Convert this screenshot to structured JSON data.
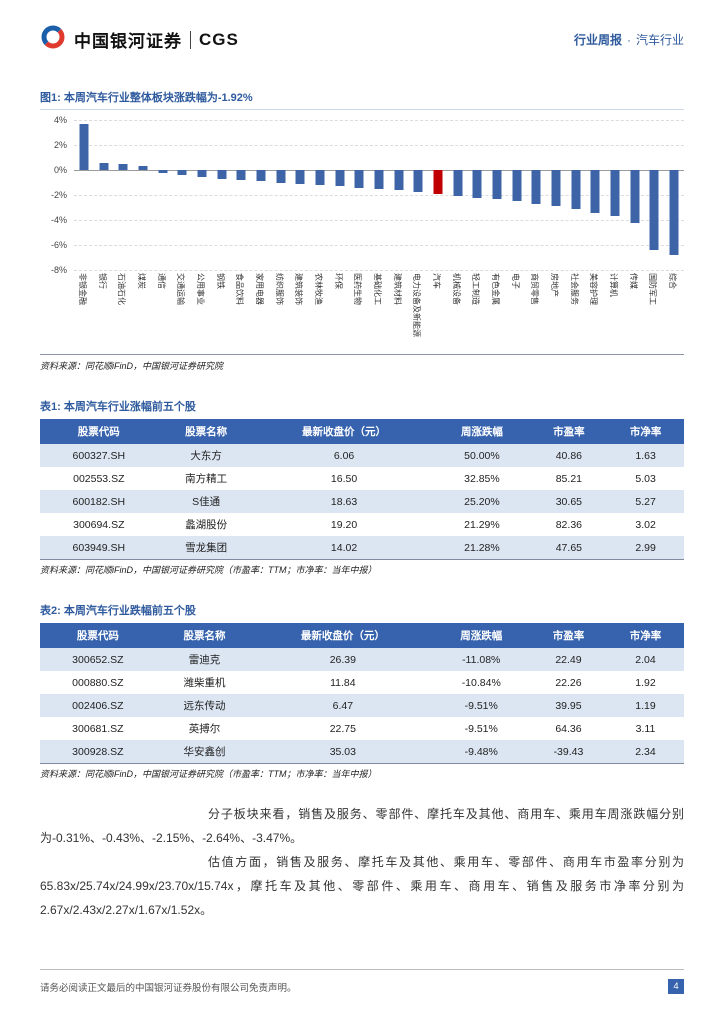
{
  "header": {
    "brand": "中国银河证券",
    "brand_suffix": "CGS",
    "report_type": "行业周报",
    "separator": "·",
    "industry": "汽车行业"
  },
  "figure1": {
    "title": "图1: 本周汽车行业整体板块涨跌幅为-1.92%",
    "source": "资料来源：同花顺iFinD，中国银河证券研究院"
  },
  "chart_data": {
    "type": "bar",
    "title": "本周汽车行业整体板块涨跌幅为-1.92%",
    "categories": [
      "非银金融",
      "银行",
      "石油石化",
      "煤炭",
      "通信",
      "交通运输",
      "公用事业",
      "钢铁",
      "食品饮料",
      "家用电器",
      "纺织服饰",
      "建筑装饰",
      "农林牧渔",
      "环保",
      "医药生物",
      "基础化工",
      "建筑材料",
      "电力设备及新能源",
      "汽车",
      "机械设备",
      "轻工制造",
      "有色金属",
      "电子",
      "商贸零售",
      "房地产",
      "社会服务",
      "美容护理",
      "计算机",
      "传媒",
      "国防军工",
      "综合"
    ],
    "values": [
      3.7,
      0.6,
      0.5,
      0.35,
      -0.25,
      -0.4,
      -0.55,
      -0.7,
      -0.8,
      -0.9,
      -1.0,
      -1.1,
      -1.2,
      -1.3,
      -1.4,
      -1.5,
      -1.6,
      -1.75,
      -1.92,
      -2.05,
      -2.2,
      -2.35,
      -2.5,
      -2.7,
      -2.9,
      -3.1,
      -3.4,
      -3.7,
      -4.2,
      -6.4,
      -6.8
    ],
    "highlight_category": "汽车",
    "highlight_index": 18,
    "bar_color": "#3E64A8",
    "highlight_color": "#C00000",
    "xlabel": "",
    "ylabel": "",
    "ylim": [
      -8,
      4
    ],
    "ytick_step": 2,
    "yticks": [
      "4%",
      "2%",
      "0%",
      "-2%",
      "-4%",
      "-6%",
      "-8%"
    ],
    "grid": true,
    "legend": false
  },
  "table1": {
    "title": "表1: 本周汽车行业涨幅前五个股",
    "headers": [
      "股票代码",
      "股票名称",
      "最新收盘价（元）",
      "周涨跌幅",
      "市盈率",
      "市净率"
    ],
    "rows": [
      [
        "600327.SH",
        "大东方",
        "6.06",
        "50.00%",
        "40.86",
        "1.63"
      ],
      [
        "002553.SZ",
        "南方精工",
        "16.50",
        "32.85%",
        "85.21",
        "5.03"
      ],
      [
        "600182.SH",
        "S佳通",
        "18.63",
        "25.20%",
        "30.65",
        "5.27"
      ],
      [
        "300694.SZ",
        "蠡湖股份",
        "19.20",
        "21.29%",
        "82.36",
        "3.02"
      ],
      [
        "603949.SH",
        "雪龙集团",
        "14.02",
        "21.28%",
        "47.65",
        "2.99"
      ]
    ],
    "source": "资料来源：同花顺iFinD，中国银河证券研究院（市盈率：TTM；市净率：当年中报）"
  },
  "table2": {
    "title": "表2: 本周汽车行业跌幅前五个股",
    "headers": [
      "股票代码",
      "股票名称",
      "最新收盘价（元）",
      "周涨跌幅",
      "市盈率",
      "市净率"
    ],
    "rows": [
      [
        "300652.SZ",
        "雷迪克",
        "26.39",
        "-11.08%",
        "22.49",
        "2.04"
      ],
      [
        "000880.SZ",
        "潍柴重机",
        "11.84",
        "-10.84%",
        "22.26",
        "1.92"
      ],
      [
        "002406.SZ",
        "远东传动",
        "6.47",
        "-9.51%",
        "39.95",
        "1.19"
      ],
      [
        "300681.SZ",
        "英搏尔",
        "22.75",
        "-9.51%",
        "64.36",
        "3.11"
      ],
      [
        "300928.SZ",
        "华安鑫创",
        "35.03",
        "-9.48%",
        "-39.43",
        "2.34"
      ]
    ],
    "source": "资料来源：同花顺iFinD，中国银河证券研究院（市盈率：TTM；市净率：当年中报）"
  },
  "body": {
    "paragraph1": "分子板块来看，销售及服务、零部件、摩托车及其他、商用车、乘用车周涨跌幅分别为-0.31%、-0.43%、-2.15%、-2.64%、-3.47%。",
    "paragraph2": "估值方面，销售及服务、摩托车及其他、乘用车、零部件、商用车市盈率分别为65.83x/25.74x/24.99x/23.70x/15.74x，摩托车及其他、零部件、乘用车、商用车、销售及服务市净率分别为2.67x/2.43x/2.27x/1.67x/1.52x。"
  },
  "footer": {
    "disclaimer": "请务必阅读正文最后的中国银河证券股份有限公司免责声明。",
    "page_number": "4"
  },
  "colors": {
    "accent_blue": "#2F5B9E",
    "table_header_bg": "#3763AE",
    "row_alt_bg": "#DCE6F2",
    "bar_blue": "#3E64A8",
    "bar_red": "#C00000",
    "logo_red": "#E03A2F",
    "logo_blue": "#1B5FAA"
  }
}
